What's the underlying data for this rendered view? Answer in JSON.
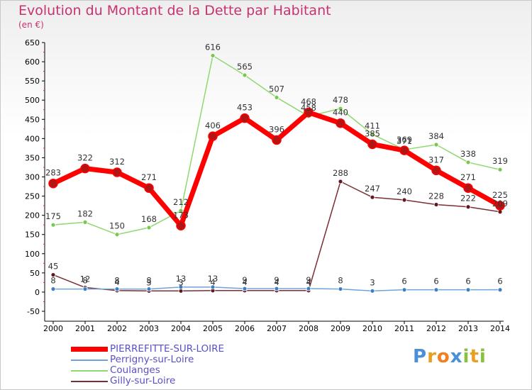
{
  "title": "Evolution du Montant de la Dette par Habitant",
  "subtitle": "(en €)",
  "chart_data": {
    "type": "line",
    "title": "Evolution du Montant de la Dette par Habitant",
    "ylabel": "(en €)",
    "xlabel": "",
    "categories": [
      "2000",
      "2001",
      "2002",
      "2003",
      "2004",
      "2005",
      "2006",
      "2007",
      "2008",
      "2009",
      "2010",
      "2011",
      "2012",
      "2013",
      "2014"
    ],
    "ylim": [
      -50,
      650
    ],
    "yticks": [
      -50,
      0,
      50,
      100,
      150,
      200,
      250,
      300,
      350,
      400,
      450,
      500,
      550,
      600,
      650
    ],
    "grid": false,
    "legend_position": "bottom-left",
    "series": [
      {
        "name": "PIERREFITTE-SUR-LOIRE",
        "color": "#ff0000",
        "point_color": "#b41414",
        "width": 7,
        "marker": 6,
        "values": [
          283,
          322,
          312,
          271,
          173,
          406,
          453,
          396,
          468,
          440,
          385,
          369,
          317,
          271,
          225
        ],
        "labels": [
          "283",
          "322",
          "312",
          "271",
          "173",
          "406",
          "453",
          "396",
          "468",
          "440",
          "385",
          "369",
          "317",
          "271",
          "225"
        ]
      },
      {
        "name": "Perrigny-sur-Loire",
        "color": "#6fa3d8",
        "point_color": "#3e7fc4",
        "width": 1.5,
        "marker": 3,
        "values": [
          8,
          8,
          8,
          8,
          13,
          13,
          9,
          9,
          9,
          8,
          3,
          6,
          6,
          6,
          6
        ],
        "labels": [
          "8",
          "8",
          "8",
          "8",
          "13",
          "13",
          "9",
          "9",
          "9",
          "8",
          "3",
          "6",
          "6",
          "6",
          "6"
        ]
      },
      {
        "name": "Coulanges",
        "color": "#90d870",
        "point_color": "#78c850",
        "width": 1.5,
        "marker": 3,
        "values": [
          175,
          182,
          150,
          168,
          212,
          616,
          565,
          507,
          458,
          478,
          411,
          371,
          384,
          338,
          319
        ],
        "labels": [
          "175",
          "182",
          "150",
          "168",
          "212",
          "616",
          "565",
          "507",
          "458",
          "478",
          "411",
          "371",
          "384",
          "338",
          "319"
        ]
      },
      {
        "name": "Gilly-sur-Loire",
        "color": "#7a2e36",
        "point_color": "#601820",
        "width": 1.5,
        "marker": 3,
        "values": [
          45,
          12,
          4,
          3,
          3,
          4,
          4,
          4,
          4,
          288,
          247,
          240,
          228,
          222,
          209
        ],
        "labels": [
          "45",
          "12",
          "4",
          "3",
          "3",
          "4",
          "4",
          "4",
          "4",
          "288",
          "247",
          "240",
          "228",
          "222",
          "209"
        ]
      }
    ]
  },
  "legend": {
    "items": [
      "PIERREFITTE-SUR-LOIRE",
      "Perrigny-sur-Loire",
      "Coulanges",
      "Gilly-sur-Loire"
    ]
  },
  "logo": {
    "text": "Proxiti",
    "letter_colors": [
      "#4a90d9",
      "#e8a020",
      "#f08020",
      "#4a90d9",
      "#88c040",
      "#e8a020",
      "#88c040"
    ]
  }
}
